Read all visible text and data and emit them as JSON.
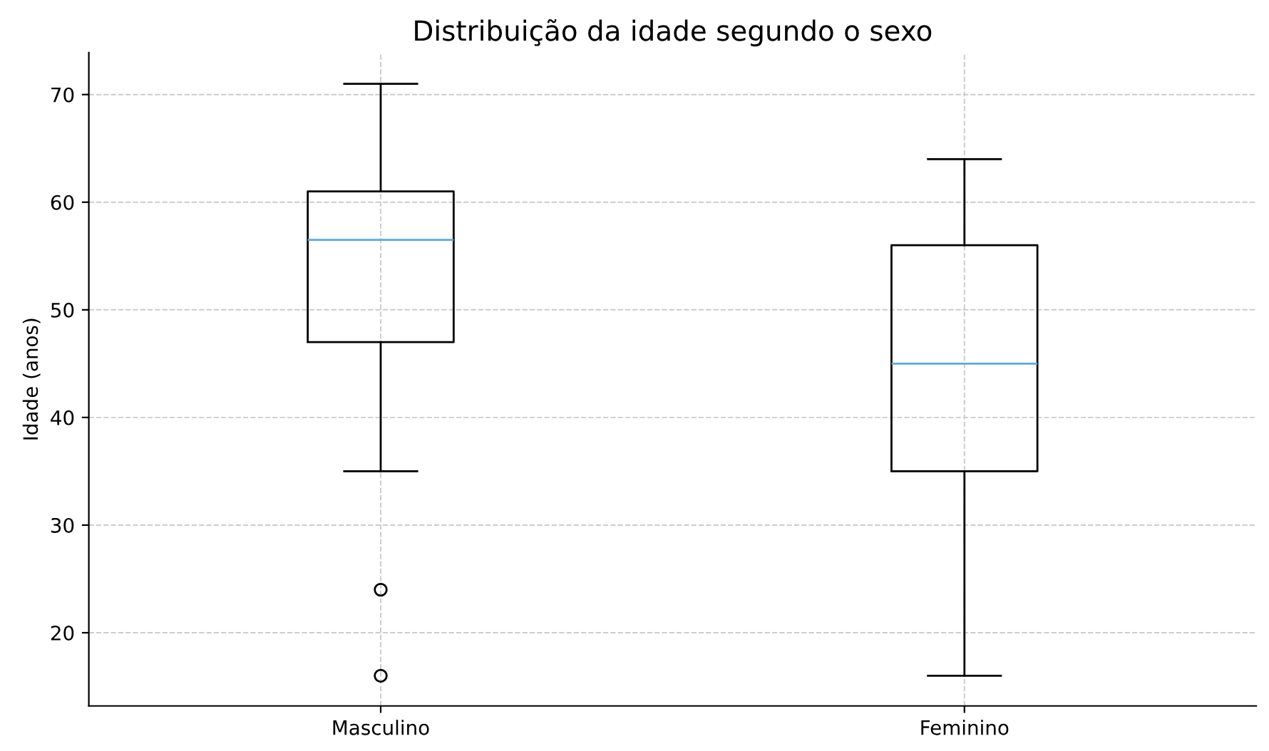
{
  "chart_data": {
    "type": "box",
    "title": "Distribuição da idade segundo o sexo",
    "ylabel": "Idade (anos)",
    "categories": [
      "Masculino",
      "Feminino"
    ],
    "boxes": [
      {
        "low": 35,
        "q1": 47,
        "median": 56.5,
        "q3": 61,
        "high": 71,
        "outliers": [
          24,
          16
        ]
      },
      {
        "low": 16,
        "q1": 35,
        "median": 45,
        "q3": 56,
        "high": 64
      }
    ],
    "ylim": [
      13.2,
      73.9
    ],
    "yticks": [
      20,
      30,
      40,
      50,
      60,
      70
    ],
    "grid": true
  }
}
